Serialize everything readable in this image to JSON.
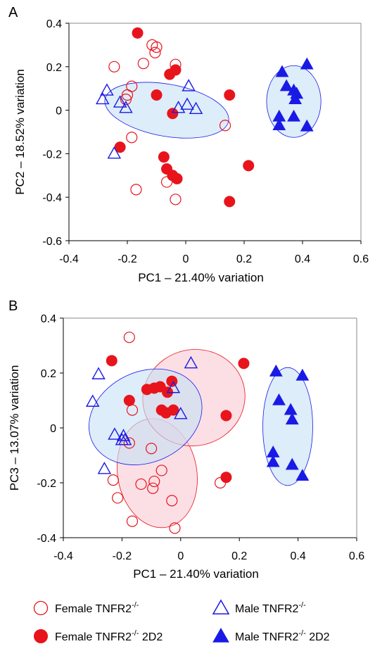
{
  "colors": {
    "female": "#e8141c",
    "male": "#1a1ae6",
    "female_ellipse_fill": "#f9c9d3",
    "male_ellipse_fill": "#c6e1f5",
    "female_ellipse_stroke": "#e8141c",
    "male_ellipse_stroke": "#1a1ae6"
  },
  "legend": {
    "items": [
      {
        "id": "female_ko",
        "base": "Female TNFR2",
        "sup": "-/-",
        "suffix": "",
        "shape": "circle",
        "filled": false,
        "group": "female"
      },
      {
        "id": "male_ko",
        "base": "Male TNFR2",
        "sup": "-/-",
        "suffix": "",
        "shape": "triangle",
        "filled": false,
        "group": "male"
      },
      {
        "id": "female_2d2",
        "base": "Female TNFR2",
        "sup": "-/-",
        "suffix": " 2D2",
        "shape": "circle",
        "filled": true,
        "group": "female"
      },
      {
        "id": "male_2d2",
        "base": "Male TNFR2",
        "sup": "-/-",
        "suffix": " 2D2",
        "shape": "triangle",
        "filled": true,
        "group": "male"
      }
    ]
  },
  "chart_data": [
    {
      "panel": "A",
      "type": "scatter",
      "xlabel": "PC1 – 21.40% variation",
      "ylabel": "PC2 – 18.52% variation",
      "xlim": [
        -0.4,
        0.6
      ],
      "ylim": [
        -0.6,
        0.4
      ],
      "xticks": [
        "-0.4",
        "-0.2",
        "0",
        "0.2",
        "0.4",
        "0.6"
      ],
      "yticks": [
        "0.4",
        "0.2",
        "0",
        "-0.2",
        "-0.4",
        "-0.6"
      ],
      "grid": false,
      "ellipses": [
        {
          "group": "male",
          "cx": -0.065,
          "cy": 0.0,
          "rx": 0.215,
          "ry": 0.12,
          "angle_deg": 10
        },
        {
          "group": "male",
          "cx": 0.37,
          "cy": 0.04,
          "rx": 0.093,
          "ry": 0.165,
          "angle_deg": 0
        }
      ],
      "series": [
        {
          "name": "Female TNFR2-/-",
          "points": [
            [
              -0.245,
              0.2
            ],
            [
              -0.2,
              0.07
            ],
            [
              -0.185,
              0.11
            ],
            [
              -0.145,
              0.215
            ],
            [
              -0.115,
              0.3
            ],
            [
              -0.1,
              0.29
            ],
            [
              -0.105,
              0.265
            ],
            [
              -0.035,
              0.21
            ],
            [
              -0.205,
              0.05
            ],
            [
              -0.185,
              -0.125
            ],
            [
              -0.17,
              -0.365
            ],
            [
              -0.065,
              -0.33
            ],
            [
              -0.035,
              -0.41
            ],
            [
              0.135,
              -0.07
            ]
          ]
        },
        {
          "name": "Female TNFR2-/- 2D2",
          "points": [
            [
              -0.165,
              0.355
            ],
            [
              -0.055,
              0.165
            ],
            [
              -0.035,
              0.185
            ],
            [
              -0.1,
              0.07
            ],
            [
              -0.045,
              -0.015
            ],
            [
              0.15,
              0.07
            ],
            [
              -0.225,
              -0.17
            ],
            [
              -0.075,
              -0.215
            ],
            [
              -0.065,
              -0.27
            ],
            [
              -0.045,
              -0.3
            ],
            [
              -0.03,
              -0.315
            ],
            [
              0.215,
              -0.255
            ],
            [
              0.15,
              -0.42
            ]
          ]
        },
        {
          "name": "Male TNFR2-/-",
          "points": [
            [
              -0.27,
              0.09
            ],
            [
              -0.285,
              0.05
            ],
            [
              -0.225,
              0.035
            ],
            [
              -0.205,
              0.01
            ],
            [
              -0.245,
              -0.2
            ],
            [
              0.01,
              0.11
            ],
            [
              -0.025,
              0.01
            ],
            [
              0.005,
              0.025
            ],
            [
              0.035,
              0.005
            ]
          ]
        },
        {
          "name": "Male TNFR2-/- 2D2",
          "points": [
            [
              0.33,
              0.175
            ],
            [
              0.345,
              0.11
            ],
            [
              0.415,
              0.21
            ],
            [
              0.37,
              0.09
            ],
            [
              0.38,
              0.075
            ],
            [
              0.375,
              0.05
            ],
            [
              0.32,
              -0.03
            ],
            [
              0.37,
              -0.03
            ],
            [
              0.32,
              -0.07
            ],
            [
              0.415,
              -0.075
            ]
          ]
        }
      ]
    },
    {
      "panel": "B",
      "type": "scatter",
      "xlabel": "PC1 – 21.40% variation",
      "ylabel": "PC3 – 13.07% variation",
      "xlim": [
        -0.4,
        0.6
      ],
      "ylim": [
        -0.4,
        0.4
      ],
      "xticks": [
        "-0.4",
        "-0.2",
        "0",
        "0.2",
        "0.4",
        "0.6"
      ],
      "yticks": [
        "0.4",
        "0.2",
        "0",
        "-0.2",
        "-0.4"
      ],
      "grid": false,
      "ellipses": [
        {
          "group": "female",
          "cx": -0.08,
          "cy": -0.165,
          "rx": 0.135,
          "ry": 0.2,
          "angle_deg": -10
        },
        {
          "group": "female",
          "cx": 0.045,
          "cy": 0.11,
          "rx": 0.175,
          "ry": 0.175,
          "angle_deg": -15
        },
        {
          "group": "male",
          "cx": -0.12,
          "cy": 0.04,
          "rx": 0.2,
          "ry": 0.165,
          "angle_deg": -25
        },
        {
          "group": "male",
          "cx": 0.365,
          "cy": 0.005,
          "rx": 0.085,
          "ry": 0.215,
          "angle_deg": 0
        }
      ],
      "series": [
        {
          "name": "Female TNFR2-/-",
          "points": [
            [
              -0.175,
              0.33
            ],
            [
              -0.165,
              0.065
            ],
            [
              -0.175,
              -0.055
            ],
            [
              -0.1,
              -0.075
            ],
            [
              -0.065,
              -0.155
            ],
            [
              -0.09,
              -0.195
            ],
            [
              -0.095,
              -0.22
            ],
            [
              -0.135,
              -0.205
            ],
            [
              -0.23,
              -0.19
            ],
            [
              -0.215,
              -0.255
            ],
            [
              -0.03,
              -0.265
            ],
            [
              -0.165,
              -0.34
            ],
            [
              -0.02,
              -0.365
            ],
            [
              0.135,
              -0.2
            ]
          ]
        },
        {
          "name": "Female TNFR2-/- 2D2",
          "points": [
            [
              -0.235,
              0.245
            ],
            [
              -0.175,
              0.1
            ],
            [
              -0.115,
              0.14
            ],
            [
              -0.09,
              0.145
            ],
            [
              -0.07,
              0.15
            ],
            [
              -0.03,
              0.17
            ],
            [
              -0.045,
              0.13
            ],
            [
              -0.065,
              0.065
            ],
            [
              -0.05,
              0.055
            ],
            [
              -0.025,
              0.065
            ],
            [
              0.155,
              0.045
            ],
            [
              0.215,
              0.235
            ],
            [
              0.155,
              -0.18
            ]
          ]
        },
        {
          "name": "Male TNFR2-/-",
          "points": [
            [
              -0.28,
              0.195
            ],
            [
              -0.3,
              0.095
            ],
            [
              0.035,
              0.235
            ],
            [
              -0.025,
              0.145
            ],
            [
              0.0,
              0.05
            ],
            [
              -0.225,
              -0.025
            ],
            [
              -0.195,
              -0.03
            ],
            [
              -0.19,
              -0.045
            ],
            [
              -0.2,
              -0.045
            ],
            [
              -0.26,
              -0.15
            ]
          ]
        },
        {
          "name": "Male TNFR2-/- 2D2",
          "points": [
            [
              0.325,
              0.205
            ],
            [
              0.415,
              0.19
            ],
            [
              0.335,
              0.1
            ],
            [
              0.375,
              0.065
            ],
            [
              0.38,
              0.03
            ],
            [
              0.315,
              -0.09
            ],
            [
              0.315,
              -0.125
            ],
            [
              0.38,
              -0.135
            ],
            [
              0.415,
              -0.175
            ]
          ]
        }
      ]
    }
  ]
}
